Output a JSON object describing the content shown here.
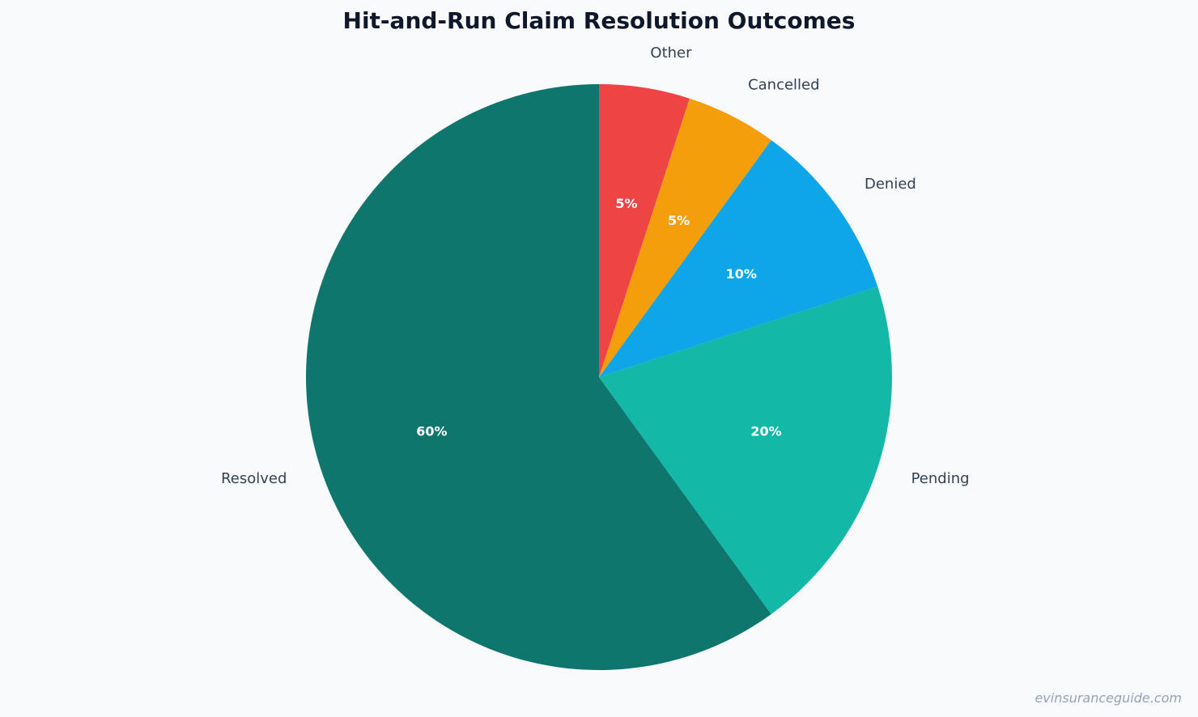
{
  "chart_data": {
    "type": "pie",
    "title": "Hit-and-Run Claim Resolution Outcomes",
    "categories": [
      "Resolved",
      "Pending",
      "Denied",
      "Cancelled",
      "Other"
    ],
    "values": [
      60,
      20,
      10,
      5,
      5
    ],
    "value_labels": [
      "60%",
      "20%",
      "10%",
      "5%",
      "5%"
    ],
    "colors": [
      "#0f766e",
      "#14b8a6",
      "#0ea5e9",
      "#f59e0b",
      "#ef4444"
    ],
    "start_angle": "top",
    "direction": "counterclockwise",
    "legend": "none"
  },
  "watermark": "evinsuranceguide.com"
}
